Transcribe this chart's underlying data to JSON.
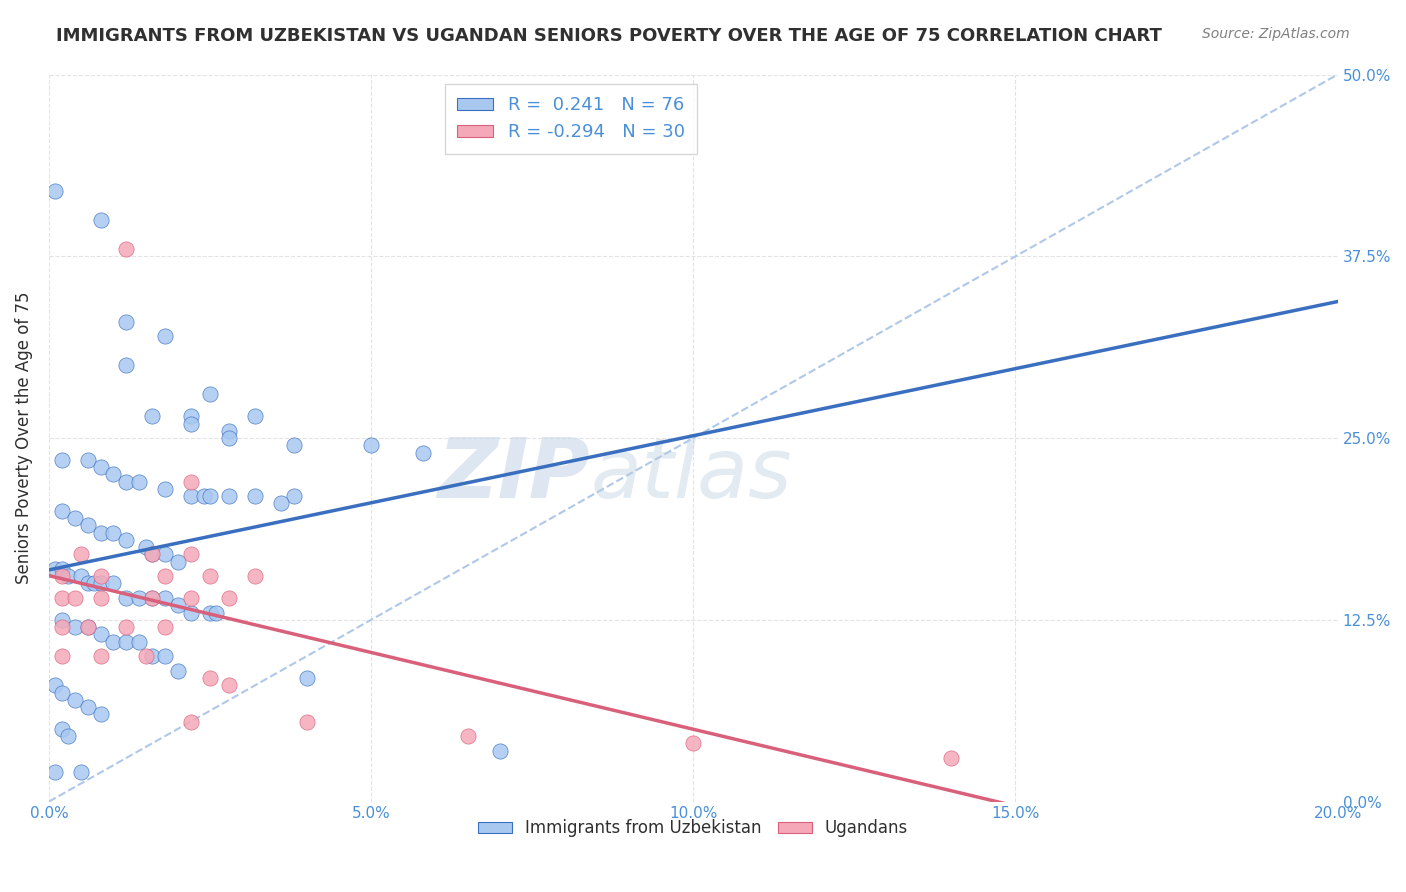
{
  "title": "IMMIGRANTS FROM UZBEKISTAN VS UGANDAN SENIORS POVERTY OVER THE AGE OF 75 CORRELATION CHART",
  "source": "Source: ZipAtlas.com",
  "ylabel": "Seniors Poverty Over the Age of 75",
  "xlabel_vals": [
    0.0,
    0.05,
    0.1,
    0.15,
    0.2
  ],
  "ylabel_vals": [
    0.0,
    0.125,
    0.25,
    0.375,
    0.5
  ],
  "xlim": [
    0.0,
    0.2
  ],
  "ylim": [
    0.0,
    0.5
  ],
  "legend_label_1": "Immigrants from Uzbekistan",
  "legend_label_2": "Ugandans",
  "R1": 0.241,
  "N1": 76,
  "R2": -0.294,
  "N2": 30,
  "blue_color": "#a8c8f0",
  "blue_line_color": "#3a6fbf",
  "pink_color": "#f5a8b8",
  "pink_line_color": "#d9607a",
  "dashed_line_color": "#b0c8e8",
  "watermark_color": "#c8d8e8",
  "grid_color": "#e0e0e0",
  "title_color": "#303030",
  "axis_color": "#4a90d9",
  "blue_scatter": [
    [
      0.001,
      0.42
    ],
    [
      0.008,
      0.4
    ],
    [
      0.012,
      0.33
    ],
    [
      0.018,
      0.32
    ],
    [
      0.012,
      0.3
    ],
    [
      0.025,
      0.28
    ],
    [
      0.016,
      0.265
    ],
    [
      0.022,
      0.265
    ],
    [
      0.032,
      0.265
    ],
    [
      0.022,
      0.26
    ],
    [
      0.028,
      0.255
    ],
    [
      0.028,
      0.25
    ],
    [
      0.038,
      0.245
    ],
    [
      0.05,
      0.245
    ],
    [
      0.058,
      0.24
    ],
    [
      0.002,
      0.235
    ],
    [
      0.006,
      0.235
    ],
    [
      0.008,
      0.23
    ],
    [
      0.01,
      0.225
    ],
    [
      0.012,
      0.22
    ],
    [
      0.014,
      0.22
    ],
    [
      0.018,
      0.215
    ],
    [
      0.022,
      0.21
    ],
    [
      0.024,
      0.21
    ],
    [
      0.025,
      0.21
    ],
    [
      0.028,
      0.21
    ],
    [
      0.032,
      0.21
    ],
    [
      0.038,
      0.21
    ],
    [
      0.036,
      0.205
    ],
    [
      0.002,
      0.2
    ],
    [
      0.004,
      0.195
    ],
    [
      0.006,
      0.19
    ],
    [
      0.008,
      0.185
    ],
    [
      0.01,
      0.185
    ],
    [
      0.012,
      0.18
    ],
    [
      0.015,
      0.175
    ],
    [
      0.016,
      0.17
    ],
    [
      0.018,
      0.17
    ],
    [
      0.02,
      0.165
    ],
    [
      0.001,
      0.16
    ],
    [
      0.002,
      0.16
    ],
    [
      0.003,
      0.155
    ],
    [
      0.005,
      0.155
    ],
    [
      0.006,
      0.15
    ],
    [
      0.007,
      0.15
    ],
    [
      0.008,
      0.15
    ],
    [
      0.01,
      0.15
    ],
    [
      0.012,
      0.14
    ],
    [
      0.014,
      0.14
    ],
    [
      0.016,
      0.14
    ],
    [
      0.018,
      0.14
    ],
    [
      0.02,
      0.135
    ],
    [
      0.022,
      0.13
    ],
    [
      0.025,
      0.13
    ],
    [
      0.026,
      0.13
    ],
    [
      0.002,
      0.125
    ],
    [
      0.004,
      0.12
    ],
    [
      0.006,
      0.12
    ],
    [
      0.008,
      0.115
    ],
    [
      0.01,
      0.11
    ],
    [
      0.012,
      0.11
    ],
    [
      0.014,
      0.11
    ],
    [
      0.016,
      0.1
    ],
    [
      0.018,
      0.1
    ],
    [
      0.02,
      0.09
    ],
    [
      0.04,
      0.085
    ],
    [
      0.001,
      0.08
    ],
    [
      0.002,
      0.075
    ],
    [
      0.004,
      0.07
    ],
    [
      0.006,
      0.065
    ],
    [
      0.008,
      0.06
    ],
    [
      0.002,
      0.05
    ],
    [
      0.003,
      0.045
    ],
    [
      0.07,
      0.035
    ],
    [
      0.001,
      0.02
    ],
    [
      0.005,
      0.02
    ]
  ],
  "pink_scatter": [
    [
      0.012,
      0.38
    ],
    [
      0.022,
      0.22
    ],
    [
      0.005,
      0.17
    ],
    [
      0.016,
      0.17
    ],
    [
      0.022,
      0.17
    ],
    [
      0.002,
      0.155
    ],
    [
      0.008,
      0.155
    ],
    [
      0.018,
      0.155
    ],
    [
      0.025,
      0.155
    ],
    [
      0.032,
      0.155
    ],
    [
      0.002,
      0.14
    ],
    [
      0.004,
      0.14
    ],
    [
      0.008,
      0.14
    ],
    [
      0.016,
      0.14
    ],
    [
      0.022,
      0.14
    ],
    [
      0.028,
      0.14
    ],
    [
      0.002,
      0.12
    ],
    [
      0.006,
      0.12
    ],
    [
      0.012,
      0.12
    ],
    [
      0.018,
      0.12
    ],
    [
      0.002,
      0.1
    ],
    [
      0.008,
      0.1
    ],
    [
      0.015,
      0.1
    ],
    [
      0.025,
      0.085
    ],
    [
      0.028,
      0.08
    ],
    [
      0.022,
      0.055
    ],
    [
      0.04,
      0.055
    ],
    [
      0.065,
      0.045
    ],
    [
      0.1,
      0.04
    ],
    [
      0.14,
      0.03
    ]
  ]
}
